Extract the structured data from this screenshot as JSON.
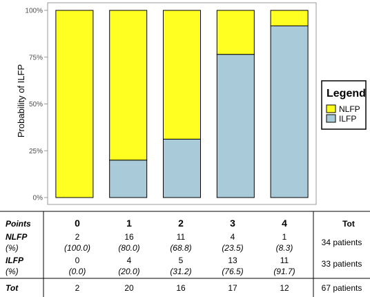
{
  "chart_data": {
    "type": "bar",
    "stacked": true,
    "percent_scale": true,
    "categories": [
      "0",
      "1",
      "2",
      "3",
      "4"
    ],
    "series": [
      {
        "name": "ILFP",
        "values": [
          0.0,
          20.0,
          31.2,
          76.5,
          91.7
        ]
      },
      {
        "name": "NLFP",
        "values": [
          100.0,
          80.0,
          68.8,
          23.5,
          8.3
        ]
      }
    ],
    "ylabel": "Probability of ILFP",
    "xlabel": "",
    "ylim": [
      0,
      100
    ],
    "yticks": [
      "0%",
      "25%",
      "50%",
      "75%",
      "100%"
    ],
    "grid": false,
    "legend": {
      "title": "Legend",
      "position": "right",
      "entries": [
        "NLFP",
        "ILFP"
      ]
    }
  },
  "colors": {
    "NLFP": "#ffff22",
    "ILFP": "#a9cad9"
  },
  "table": {
    "headers": {
      "label": "Points",
      "cols": [
        "0",
        "1",
        "2",
        "3",
        "4"
      ],
      "total": "Tot"
    },
    "rows": [
      {
        "name": "NLFP",
        "pct_label": "(%)",
        "counts": [
          "2",
          "16",
          "11",
          "4",
          "1"
        ],
        "pcts": [
          "(100.0)",
          "(80.0)",
          "(68.8)",
          "(23.5)",
          "(8.3)"
        ],
        "total": "34 patients"
      },
      {
        "name": "ILFP",
        "pct_label": "(%)",
        "counts": [
          "0",
          "4",
          "5",
          "13",
          "11"
        ],
        "pcts": [
          "(0.0)",
          "(20.0)",
          "(31.2)",
          "(76.5)",
          "(91.7)"
        ],
        "total": "33 patients"
      }
    ],
    "totals": {
      "label": "Tot",
      "values": [
        "2",
        "20",
        "16",
        "17",
        "12"
      ],
      "total": "67 patients"
    }
  }
}
